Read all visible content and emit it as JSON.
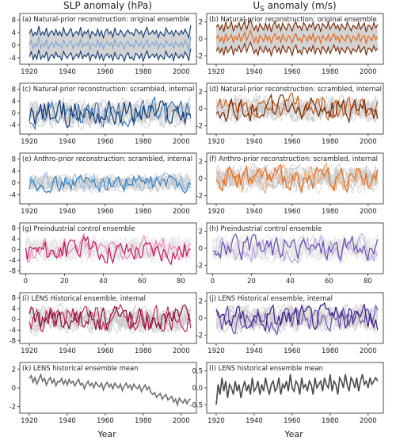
{
  "figure": {
    "left_title": "SLP anomaly (hPa)",
    "right_title_main": "U",
    "right_title_sub": "S",
    "right_title_rest": " anomaly (m/s)",
    "xlabel": "Year"
  },
  "chart_data": [
    {
      "type": "line",
      "col": 0,
      "title": "(a) Natural-prior reconstruction: original ensemble",
      "xlim": [
        1915,
        2008
      ],
      "ylim": [
        -6,
        10
      ],
      "xticks": [
        1920,
        1940,
        1960,
        1980,
        2000
      ],
      "yticks": [
        -4,
        0,
        4,
        8
      ],
      "ytick_labels": [
        "-4",
        "0",
        "4",
        "8"
      ],
      "style": "band",
      "band": "#d3d3d3",
      "series": [
        {
          "name": "upper",
          "color": "#0f3a78"
        },
        {
          "name": "lower",
          "color": "#0f3a78"
        },
        {
          "name": "mean",
          "color": "#7fa7d6"
        }
      ],
      "x_start": 1920,
      "x_end": 2005,
      "base": [
        0,
        1.5,
        -1,
        0.5,
        -0.5,
        2.5,
        -0.8,
        0.6,
        -0.4,
        1.8,
        -1.2,
        0.3,
        0.9,
        -0.6,
        1.2,
        -0.2,
        0.4,
        -0.9,
        1.6,
        0.2,
        -0.5,
        0.8,
        1.4,
        -1.0,
        0.1,
        0.7,
        -0.3,
        1.9,
        -0.7,
        0.5,
        -0.1,
        1.1,
        -1.3,
        0.6,
        0.3,
        -0.6,
        1.5,
        -0.4,
        0.9,
        -1.1,
        0.4,
        1.2,
        -0.2,
        0.8,
        -0.9,
        1.6,
        0.0,
        -0.5,
        1.0,
        0.4,
        -1.2,
        0.7,
        1.3,
        -0.3,
        0.2,
        -0.8,
        1.4,
        0.6,
        -0.4,
        1.0,
        -1.0,
        0.5,
        1.7,
        -0.6,
        0.3,
        0.9,
        -0.2,
        1.2,
        -1.1,
        0.6,
        0.1,
        -0.7,
        1.5,
        0.4,
        -0.3,
        0.8,
        -1.0,
        1.1,
        0.2,
        -0.5,
        0.9,
        -0.4,
        1.6,
        0.3,
        -1.3,
        2.5
      ],
      "spread": 4.0
    },
    {
      "type": "line",
      "col": 1,
      "title": "(b) Natural-prior reconstruction: original ensemble",
      "xlim": [
        1915,
        2008
      ],
      "ylim": [
        -3,
        3
      ],
      "xticks": [
        1920,
        1940,
        1960,
        1980,
        2000
      ],
      "yticks": [
        -2,
        0,
        2
      ],
      "ytick_labels": [
        "-2",
        "0",
        "2"
      ],
      "style": "band",
      "band": "#d3d3d3",
      "series": [
        {
          "name": "upper",
          "color": "#7a2a05"
        },
        {
          "name": "lower",
          "color": "#7a2a05"
        },
        {
          "name": "mean",
          "color": "#e56a1c"
        }
      ],
      "x_start": 1920,
      "x_end": 2005,
      "base": [
        0,
        0.4,
        -0.3,
        0.2,
        -0.5,
        0.6,
        -0.2,
        0.1,
        0.5,
        -0.4,
        0.3,
        -0.1,
        0.6,
        -0.3,
        0.2,
        0.8,
        -0.2,
        0.4,
        1.0,
        0.3,
        -0.4,
        0.2,
        -0.5,
        0.4,
        0.1,
        -0.3,
        0.5,
        -0.2,
        0.3,
        -0.5,
        0.2,
        0.6,
        -0.1,
        0.3,
        -0.4,
        0.5,
        0.0,
        -0.3,
        0.4,
        0.2,
        -0.5,
        0.3,
        0.6,
        -0.2,
        0.1,
        -0.4,
        0.5,
        0.2,
        -0.3,
        0.4,
        -0.1,
        0.6,
        -0.4,
        0.2,
        0.3,
        -0.5,
        0.4,
        0.1,
        -0.2,
        0.5,
        -0.3,
        0.2,
        0.6,
        -0.1,
        0.3,
        -0.4,
        0.4,
        0.0,
        -0.3,
        0.5,
        0.2,
        -0.4,
        0.3,
        0.1,
        -0.2,
        0.6,
        -0.3,
        0.2,
        0.4,
        -0.5,
        0.3,
        0.1,
        -0.2,
        0.5,
        -0.1,
        0.3
      ],
      "spread": 1.5
    },
    {
      "type": "line",
      "col": 0,
      "title": "(c) Natural-prior reconstruction: scrambled, internal",
      "xlim": [
        1915,
        2008
      ],
      "ylim": [
        -7,
        10
      ],
      "xticks": [
        1920,
        1940,
        1960,
        1980,
        2000
      ],
      "yticks": [
        -4,
        0,
        4,
        8
      ],
      "ytick_labels": [
        "-4",
        "0",
        "4",
        "8"
      ],
      "style": "spaghetti",
      "band": "#c8c8c8",
      "series": [
        {
          "name": "s1",
          "color": "#0f3a78"
        },
        {
          "name": "s2",
          "color": "#2e6fb5"
        }
      ],
      "x_start": 1920,
      "x_end": 2005,
      "amp": 4.0,
      "seed": 11
    },
    {
      "type": "line",
      "col": 1,
      "title": "(d) Natural-prior reconstruction: scrambled, internal",
      "xlim": [
        1915,
        2008
      ],
      "ylim": [
        -3,
        3
      ],
      "xticks": [
        1920,
        1940,
        1960,
        1980,
        2000
      ],
      "yticks": [
        -2,
        0,
        2
      ],
      "ytick_labels": [
        "-2",
        "0",
        "2"
      ],
      "style": "spaghetti",
      "band": "#c8c8c8",
      "series": [
        {
          "name": "s1",
          "color": "#7a2a05"
        },
        {
          "name": "s2",
          "color": "#c95a12"
        }
      ],
      "x_start": 1920,
      "x_end": 2005,
      "amp": 1.3,
      "seed": 23
    },
    {
      "type": "line",
      "col": 0,
      "title": "(e) Anthro-prior reconstruction: scrambled, internal",
      "xlim": [
        1915,
        2008
      ],
      "ylim": [
        -7,
        10
      ],
      "xticks": [
        1920,
        1940,
        1960,
        1980,
        2000
      ],
      "yticks": [
        -4,
        0,
        4,
        8
      ],
      "ytick_labels": [
        "-4",
        "0",
        "4",
        "8"
      ],
      "style": "spaghetti",
      "band": "#c8c8c8",
      "series": [
        {
          "name": "s1",
          "color": "#2f7fc1"
        },
        {
          "name": "s2",
          "color": "#8cbce6"
        }
      ],
      "x_start": 1920,
      "x_end": 2005,
      "amp": 2.5,
      "seed": 37
    },
    {
      "type": "line",
      "col": 1,
      "title": "(f) Anthro-prior reconstruction: scrambled, internal",
      "xlim": [
        1915,
        2008
      ],
      "ylim": [
        -3,
        3
      ],
      "xticks": [
        1920,
        1940,
        1960,
        1980,
        2000
      ],
      "yticks": [
        -2,
        0,
        2
      ],
      "ytick_labels": [
        "-2",
        "0",
        "2"
      ],
      "style": "spaghetti",
      "band": "#c8c8c8",
      "series": [
        {
          "name": "s1",
          "color": "#e56a1c"
        },
        {
          "name": "s2",
          "color": "#f3a25e"
        }
      ],
      "x_start": 1920,
      "x_end": 2005,
      "amp": 1.3,
      "seed": 41
    },
    {
      "type": "line",
      "col": 0,
      "title": "(g) Preindustrial control ensemble",
      "xlim": [
        -3,
        88
      ],
      "ylim": [
        -9,
        10
      ],
      "xticks": [
        0,
        20,
        40,
        60,
        80
      ],
      "yticks": [
        -8,
        -4,
        0,
        4,
        8
      ],
      "ytick_labels": [
        "-8",
        "-4",
        "0",
        "4",
        "8"
      ],
      "style": "spaghetti",
      "band": "#e0e0e0",
      "series": [
        {
          "name": "s1",
          "color": "#c2185b"
        },
        {
          "name": "s2",
          "color": "#ef80b0"
        }
      ],
      "x_start": 0,
      "x_end": 85,
      "amp": 4.0,
      "seed": 53
    },
    {
      "type": "line",
      "col": 1,
      "title": "(h) Preindustrial control ensemble",
      "xlim": [
        -3,
        88
      ],
      "ylim": [
        -3,
        3
      ],
      "xticks": [
        0,
        20,
        40,
        60,
        80
      ],
      "yticks": [
        -2,
        0,
        2
      ],
      "ytick_labels": [
        "-2",
        "0",
        "2"
      ],
      "style": "spaghetti",
      "band": "#e0e0e0",
      "series": [
        {
          "name": "s1",
          "color": "#6a4bb0"
        },
        {
          "name": "s2",
          "color": "#b5a5de"
        }
      ],
      "x_start": 0,
      "x_end": 85,
      "amp": 1.3,
      "seed": 67
    },
    {
      "type": "line",
      "col": 0,
      "title": "(i) LENS Historical ensemble, internal",
      "xlim": [
        1915,
        2008
      ],
      "ylim": [
        -9,
        10
      ],
      "xticks": [
        1920,
        1940,
        1960,
        1980,
        2000
      ],
      "yticks": [
        -8,
        -4,
        0,
        4,
        8
      ],
      "ytick_labels": [
        "-8",
        "-4",
        "0",
        "4",
        "8"
      ],
      "style": "spaghetti",
      "band": "#c8c8c8",
      "series": [
        {
          "name": "s1",
          "color": "#8c0f30"
        },
        {
          "name": "s2",
          "color": "#c2185b"
        }
      ],
      "x_start": 1920,
      "x_end": 2005,
      "amp": 4.2,
      "seed": 71
    },
    {
      "type": "line",
      "col": 1,
      "title": "(j) LENS Historical ensemble, internal",
      "xlim": [
        1915,
        2008
      ],
      "ylim": [
        -3,
        3
      ],
      "xticks": [
        1920,
        1940,
        1960,
        1980,
        2000
      ],
      "yticks": [
        -2,
        0,
        2
      ],
      "ytick_labels": [
        "-2",
        "0",
        "2"
      ],
      "style": "spaghetti",
      "band": "#c8c8c8",
      "series": [
        {
          "name": "s1",
          "color": "#3b1a8a"
        },
        {
          "name": "s2",
          "color": "#6a4bb0"
        }
      ],
      "x_start": 1920,
      "x_end": 2005,
      "amp": 1.4,
      "seed": 83
    },
    {
      "type": "line",
      "col": 0,
      "title": "(k) LENS historical ensemble mean",
      "xlim": [
        1915,
        2008
      ],
      "ylim": [
        -2.7,
        2.7
      ],
      "xticks": [
        1920,
        1940,
        1960,
        1980,
        2000
      ],
      "yticks": [
        -2,
        0,
        2
      ],
      "ytick_labels": [
        "-2",
        "0",
        "2"
      ],
      "style": "single",
      "series": [
        {
          "name": "mean",
          "color": "#707070"
        }
      ],
      "x": [
        1920,
        1921,
        1922,
        1923,
        1924,
        1925,
        1926,
        1927,
        1928,
        1929,
        1930,
        1931,
        1932,
        1933,
        1934,
        1935,
        1936,
        1937,
        1938,
        1939,
        1940,
        1941,
        1942,
        1943,
        1944,
        1945,
        1946,
        1947,
        1948,
        1949,
        1950,
        1951,
        1952,
        1953,
        1954,
        1955,
        1956,
        1957,
        1958,
        1959,
        1960,
        1961,
        1962,
        1963,
        1964,
        1965,
        1966,
        1967,
        1968,
        1969,
        1970,
        1971,
        1972,
        1973,
        1974,
        1975,
        1976,
        1977,
        1978,
        1979,
        1980,
        1981,
        1982,
        1983,
        1984,
        1985,
        1986,
        1987,
        1988,
        1989,
        1990,
        1991,
        1992,
        1993,
        1994,
        1995,
        1996,
        1997,
        1998,
        1999,
        2000,
        2001,
        2002,
        2003,
        2004,
        2005
      ],
      "values": [
        1.0,
        1.3,
        0.6,
        1.1,
        0.4,
        0.9,
        1.4,
        0.7,
        1.0,
        0.3,
        0.8,
        1.1,
        0.5,
        0.9,
        0.2,
        0.7,
        0.6,
        1.0,
        0.4,
        0.8,
        0.3,
        0.9,
        0.5,
        0.7,
        0.2,
        0.6,
        0.9,
        0.3,
        0.5,
        -0.1,
        0.4,
        0.7,
        0.2,
        0.5,
        0.0,
        0.6,
        0.3,
        0.1,
        0.5,
        -0.2,
        0.3,
        0.6,
        0.1,
        0.4,
        -0.1,
        0.5,
        0.2,
        0.0,
        0.4,
        -0.3,
        0.2,
        0.5,
        0.0,
        0.3,
        -0.2,
        0.4,
        0.1,
        -0.1,
        0.3,
        -0.4,
        0.0,
        0.3,
        -0.2,
        0.1,
        -0.5,
        -0.7,
        -0.5,
        -1.0,
        -0.8,
        -0.6,
        -1.2,
        -0.9,
        -0.7,
        -1.3,
        -1.1,
        -0.9,
        -1.5,
        -1.2,
        -1.8,
        -1.1,
        -1.4,
        -1.6,
        -1.2,
        -1.7,
        -1.3,
        -1.2
      ]
    },
    {
      "type": "line",
      "col": 1,
      "title": "(l) LENS historical ensemble mean",
      "xlim": [
        1915,
        2008
      ],
      "ylim": [
        -0.75,
        0.75
      ],
      "xticks": [
        1920,
        1940,
        1960,
        1980,
        2000
      ],
      "yticks": [
        -0.5,
        0,
        0.5
      ],
      "ytick_labels": [
        "-0.5",
        "0.0",
        "0.5"
      ],
      "style": "single",
      "series": [
        {
          "name": "mean",
          "color": "#4a4a4a"
        }
      ],
      "x": [
        1920,
        1921,
        1922,
        1923,
        1924,
        1925,
        1926,
        1927,
        1928,
        1929,
        1930,
        1931,
        1932,
        1933,
        1934,
        1935,
        1936,
        1937,
        1938,
        1939,
        1940,
        1941,
        1942,
        1943,
        1944,
        1945,
        1946,
        1947,
        1948,
        1949,
        1950,
        1951,
        1952,
        1953,
        1954,
        1955,
        1956,
        1957,
        1958,
        1959,
        1960,
        1961,
        1962,
        1963,
        1964,
        1965,
        1966,
        1967,
        1968,
        1969,
        1970,
        1971,
        1972,
        1973,
        1974,
        1975,
        1976,
        1977,
        1978,
        1979,
        1980,
        1981,
        1982,
        1983,
        1984,
        1985,
        1986,
        1987,
        1988,
        1989,
        1990,
        1991,
        1992,
        1993,
        1994,
        1995,
        1996,
        1997,
        1998,
        1999,
        2000,
        2001,
        2002,
        2003,
        2004,
        2005
      ],
      "values": [
        -0.5,
        0.1,
        -0.2,
        0.3,
        -0.1,
        0.2,
        -0.3,
        0.1,
        0.0,
        -0.2,
        0.2,
        -0.1,
        0.1,
        -0.3,
        0.0,
        0.2,
        -0.1,
        0.1,
        -0.2,
        0.3,
        -0.1,
        0.0,
        0.2,
        -0.2,
        0.1,
        -0.1,
        0.3,
        0.0,
        -0.2,
        0.1,
        0.2,
        -0.1,
        0.0,
        0.3,
        -0.2,
        0.1,
        0.0,
        0.2,
        -0.1,
        0.4,
        0.0,
        -0.1,
        0.2,
        0.1,
        -0.2,
        0.3,
        0.0,
        0.1,
        -0.1,
        0.2,
        0.1,
        -0.2,
        0.3,
        0.0,
        0.1,
        0.2,
        -0.1,
        0.3,
        0.1,
        0.0,
        0.4,
        -0.1,
        0.2,
        0.1,
        -0.2,
        0.3,
        0.2,
        0.0,
        0.4,
        0.1,
        -0.1,
        0.3,
        0.2,
        0.0,
        0.3,
        -0.1,
        0.2,
        0.4,
        0.1,
        0.2,
        0.0,
        0.3,
        0.1,
        0.2,
        0.3,
        0.2
      ]
    }
  ]
}
